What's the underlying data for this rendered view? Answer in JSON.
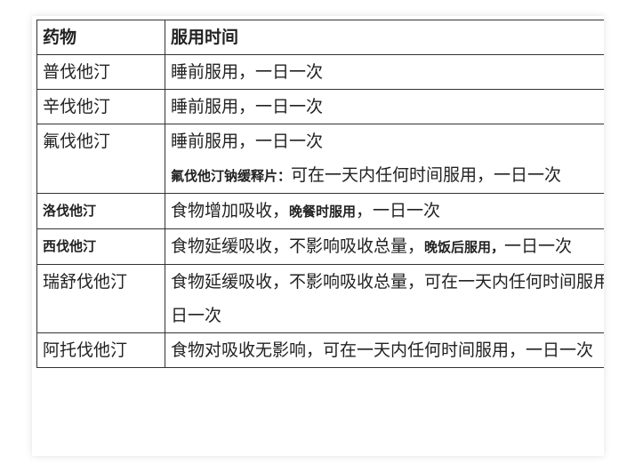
{
  "table": {
    "headers": [
      "药物",
      "服用时间"
    ],
    "rows": [
      {
        "drug": "普伐他汀",
        "lines": [
          [
            {
              "t": "睡前服用，一日一次"
            }
          ]
        ]
      },
      {
        "drug": "辛伐他汀",
        "lines": [
          [
            {
              "t": "睡前服用，一日一次"
            }
          ]
        ]
      },
      {
        "drug": "氟伐他汀",
        "lines": [
          [
            {
              "t": "睡前服用，一日一次"
            }
          ],
          [
            {
              "t": "氟伐他汀钠缓释片：",
              "bold": true
            },
            {
              "t": "可在一天内任何时间服用，一日一次"
            }
          ]
        ]
      },
      {
        "drug": "洛伐他汀",
        "drug_bold": true,
        "lines": [
          [
            {
              "t": "食物增加吸收，"
            },
            {
              "t": "晚餐时服用",
              "bold": true
            },
            {
              "t": "，一日一次"
            }
          ]
        ]
      },
      {
        "drug": "西伐他汀",
        "drug_bold": true,
        "lines": [
          [
            {
              "t": "食物延缓吸收，不影响吸收总量，"
            },
            {
              "t": "晚饭后服用，",
              "bold": true
            },
            {
              "t": "一日一次"
            }
          ]
        ]
      },
      {
        "drug": "瑞舒伐他汀",
        "lines": [
          [
            {
              "t": "食物延缓吸收，不影响吸收总量，可在一天内任何时间服用，一日一次"
            }
          ]
        ]
      },
      {
        "drug": "阿托伐他汀",
        "lines": [
          [
            {
              "t": "食物对吸收无影响，可在一天内任何时间服用，一日一次"
            }
          ]
        ]
      }
    ]
  }
}
